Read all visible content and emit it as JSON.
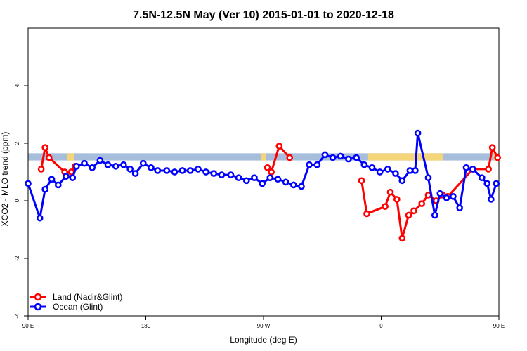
{
  "chart_data": {
    "type": "line",
    "title": "7.5N-12.5N May (Ver 10)   2015-01-01 to 2020-12-18",
    "xlabel": "Longitude (deg E)",
    "ylabel": "XCO2 - MLO trend (ppm)",
    "xlim": [
      90,
      450
    ],
    "ylim": [
      -4,
      6
    ],
    "x_ticks": [
      {
        "value": 90,
        "label": "90 E"
      },
      {
        "value": 180,
        "label": "180"
      },
      {
        "value": 270,
        "label": "90 W"
      },
      {
        "value": 360,
        "label": "0"
      },
      {
        "value": 450,
        "label": "90 E"
      },
      {
        "value": 540,
        "label": "180"
      }
    ],
    "y_ticks": [
      {
        "value": -4,
        "label": "-4"
      },
      {
        "value": -2,
        "label": "-2"
      },
      {
        "value": 0,
        "label": "0"
      },
      {
        "value": 2,
        "label": "2"
      },
      {
        "value": 4,
        "label": "4"
      }
    ],
    "legend_position": "bottom-left",
    "land_band": {
      "y_range": [
        1.4,
        1.65
      ],
      "ocean_color": "#a6bddb",
      "land_color": "#f5d57a"
    },
    "series": [
      {
        "name": "Land (Nadir&Glint)",
        "color": "#ff0000",
        "points": [
          [
            100,
            1.1
          ],
          [
            103,
            1.85
          ],
          [
            106,
            1.5
          ],
          [
            118,
            1.0
          ],
          [
            123,
            1.0
          ],
          [
            126,
            1.2
          ],
          [
            273,
            1.15
          ],
          [
            276,
            1.0
          ],
          [
            282,
            1.9
          ],
          [
            290,
            1.5
          ],
          [
            345,
            0.7
          ],
          [
            349,
            -0.45
          ],
          [
            363,
            -0.2
          ],
          [
            367,
            0.3
          ],
          [
            372,
            0.05
          ],
          [
            376,
            -1.3
          ],
          [
            381,
            -0.5
          ],
          [
            385,
            -0.35
          ],
          [
            391,
            -0.1
          ],
          [
            396,
            0.2
          ],
          [
            402,
            0.0
          ],
          [
            407,
            0.2
          ],
          [
            411,
            0.15
          ],
          [
            430,
            1.1
          ],
          [
            442,
            1.1
          ],
          [
            445,
            1.85
          ],
          [
            449,
            1.5
          ]
        ]
      },
      {
        "name": "Ocean (Glint)",
        "color": "#0000ff",
        "points": [
          [
            90,
            0.6
          ],
          [
            99,
            -0.6
          ],
          [
            103,
            0.4
          ],
          [
            108,
            0.75
          ],
          [
            113,
            0.55
          ],
          [
            119,
            0.85
          ],
          [
            124,
            0.8
          ],
          [
            127,
            1.2
          ],
          [
            133,
            1.3
          ],
          [
            139,
            1.15
          ],
          [
            145,
            1.4
          ],
          [
            151,
            1.25
          ],
          [
            157,
            1.2
          ],
          [
            163,
            1.25
          ],
          [
            168,
            1.1
          ],
          [
            172,
            0.95
          ],
          [
            178,
            1.3
          ],
          [
            184,
            1.15
          ],
          [
            189,
            1.05
          ],
          [
            196,
            1.05
          ],
          [
            202,
            1.0
          ],
          [
            208,
            1.05
          ],
          [
            214,
            1.05
          ],
          [
            220,
            1.1
          ],
          [
            226,
            1.0
          ],
          [
            232,
            0.95
          ],
          [
            238,
            0.9
          ],
          [
            245,
            0.9
          ],
          [
            251,
            0.8
          ],
          [
            257,
            0.7
          ],
          [
            263,
            0.8
          ],
          [
            269,
            0.6
          ],
          [
            275,
            0.8
          ],
          [
            281,
            0.75
          ],
          [
            287,
            0.65
          ],
          [
            293,
            0.55
          ],
          [
            299,
            0.5
          ],
          [
            305,
            1.25
          ],
          [
            311,
            1.25
          ],
          [
            317,
            1.6
          ],
          [
            323,
            1.5
          ],
          [
            329,
            1.55
          ],
          [
            335,
            1.45
          ],
          [
            341,
            1.5
          ],
          [
            347,
            1.25
          ],
          [
            353,
            1.15
          ],
          [
            359,
            1.0
          ],
          [
            365,
            1.1
          ],
          [
            371,
            0.95
          ],
          [
            376,
            0.7
          ],
          [
            382,
            1.05
          ],
          [
            386,
            1.05
          ],
          [
            388,
            2.35
          ],
          [
            396,
            0.8
          ],
          [
            401,
            -0.5
          ],
          [
            405,
            0.25
          ],
          [
            410,
            0.1
          ],
          [
            415,
            0.15
          ],
          [
            420,
            -0.25
          ],
          [
            425,
            1.15
          ],
          [
            430,
            1.1
          ],
          [
            437,
            0.8
          ],
          [
            441,
            0.6
          ],
          [
            444,
            0.05
          ],
          [
            448,
            0.6
          ]
        ]
      }
    ]
  }
}
